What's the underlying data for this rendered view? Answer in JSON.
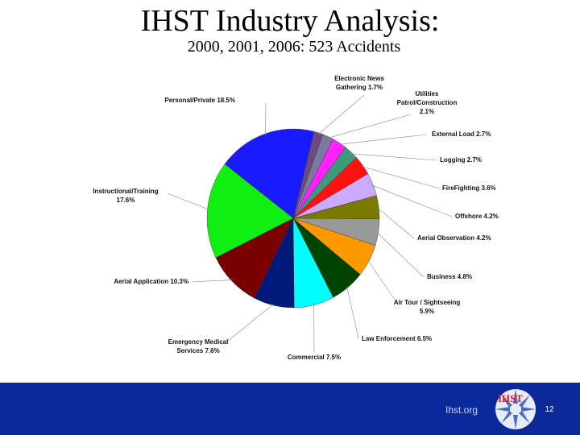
{
  "slide": {
    "title": "IHST Industry Analysis:",
    "subtitle": "2000, 2001, 2006:  523 Accidents",
    "footer_url": "Ihst.org",
    "page_number": "12",
    "logo_text": "IHST",
    "footer_color": "#0a2a9c"
  },
  "chart_data": {
    "type": "pie",
    "title": "",
    "slices": [
      {
        "label": "Personal/Private 18.5%",
        "value": 18.5,
        "color": "#1a1aff"
      },
      {
        "label": "Electronic News Gathering 1.7%",
        "value": 1.7,
        "color": "#6b4a7e"
      },
      {
        "label": "Utilities Patrol/Construction 2.1%",
        "value": 2.1,
        "color": "#7a7aa0"
      },
      {
        "label": "External Load 2.7%",
        "value": 2.7,
        "color": "#ff22ff"
      },
      {
        "label": "Logging 2.7%",
        "value": 2.7,
        "color": "#3a9a7a"
      },
      {
        "label": "FireFighting 3.6%",
        "value": 3.6,
        "color": "#ff1111"
      },
      {
        "label": "Offshore 4.2%",
        "value": 4.2,
        "color": "#ccaaff"
      },
      {
        "label": "Aerial Observation 4.2%",
        "value": 4.2,
        "color": "#7a7a00"
      },
      {
        "label": "Business 4.8%",
        "value": 4.8,
        "color": "#999999"
      },
      {
        "label": "Air Tour / Sightseeing 5.9%",
        "value": 5.9,
        "color": "#ff9900"
      },
      {
        "label": "Law Enforcement 6.5%",
        "value": 6.5,
        "color": "#004400"
      },
      {
        "label": "Commercial 7.5%",
        "value": 7.5,
        "color": "#00ffff"
      },
      {
        "label": "Emergency Medical Services 7.6%",
        "value": 7.6,
        "color": "#001a7a"
      },
      {
        "label": "Aerial Application 10.3%",
        "value": 10.3,
        "color": "#7a0000"
      },
      {
        "label": "Instructional/Training 17.6%",
        "value": 17.6,
        "color": "#11ee11"
      }
    ]
  }
}
